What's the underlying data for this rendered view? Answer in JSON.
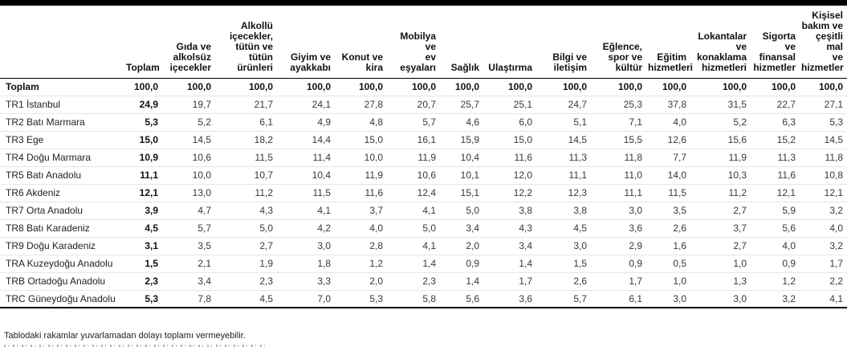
{
  "table": {
    "row_label_header": "",
    "columns": [
      "Toplam",
      "Gıda ve\nalkolsüz\niçecekler",
      "Alkollü\niçecekler,\ntütün ve\ntütün\nürünleri",
      "Giyim ve\nayakkabı",
      "Konut ve\nkira",
      "Mobilya ve\nev\neşyaları",
      "Sağlık",
      "Ulaştırma",
      "Bilgi ve\niletişim",
      "Eğlence,\nspor ve\nkültür",
      "Eğitim\nhizmetleri",
      "Lokantalar\nve\nkonaklama\nhizmetleri",
      "Sigorta ve\nfinansal\nhizmetler",
      "Kişisel\nbakım ve\nçeşitli mal\nve\nhizmetler"
    ],
    "rows": [
      {
        "label": "Toplam",
        "bold": true,
        "values": [
          "100,0",
          "100,0",
          "100,0",
          "100,0",
          "100,0",
          "100,0",
          "100,0",
          "100,0",
          "100,0",
          "100,0",
          "100,0",
          "100,0",
          "100,0",
          "100,0"
        ]
      },
      {
        "label": "TR1 İstanbul",
        "values": [
          "24,9",
          "19,7",
          "21,7",
          "24,1",
          "27,8",
          "20,7",
          "25,7",
          "25,1",
          "24,7",
          "25,3",
          "37,8",
          "31,5",
          "22,7",
          "27,1"
        ]
      },
      {
        "label": "TR2 Batı Marmara",
        "values": [
          "5,3",
          "5,2",
          "6,1",
          "4,9",
          "4,8",
          "5,7",
          "4,6",
          "6,0",
          "5,1",
          "7,1",
          "4,0",
          "5,2",
          "6,3",
          "5,3"
        ]
      },
      {
        "label": "TR3 Ege",
        "values": [
          "15,0",
          "14,5",
          "18,2",
          "14,4",
          "15,0",
          "16,1",
          "15,9",
          "15,0",
          "14,5",
          "15,5",
          "12,6",
          "15,6",
          "15,2",
          "14,5"
        ]
      },
      {
        "label": "TR4 Doğu Marmara",
        "values": [
          "10,9",
          "10,6",
          "11,5",
          "11,4",
          "10,0",
          "11,9",
          "10,4",
          "11,6",
          "11,3",
          "11,8",
          "7,7",
          "11,9",
          "11,3",
          "11,8"
        ]
      },
      {
        "label": "TR5 Batı Anadolu",
        "values": [
          "11,1",
          "10,0",
          "10,7",
          "10,4",
          "11,9",
          "10,6",
          "10,1",
          "12,0",
          "11,1",
          "11,0",
          "14,0",
          "10,3",
          "11,6",
          "10,8"
        ]
      },
      {
        "label": "TR6 Akdeniz",
        "values": [
          "12,1",
          "13,0",
          "11,2",
          "11,5",
          "11,6",
          "12,4",
          "15,1",
          "12,2",
          "12,3",
          "11,1",
          "11,5",
          "11,2",
          "12,1",
          "12,1"
        ]
      },
      {
        "label": "TR7 Orta Anadolu",
        "values": [
          "3,9",
          "4,7",
          "4,3",
          "4,1",
          "3,7",
          "4,1",
          "5,0",
          "3,8",
          "3,8",
          "3,0",
          "3,5",
          "2,7",
          "5,9",
          "3,2"
        ]
      },
      {
        "label": "TR8 Batı Karadeniz",
        "values": [
          "4,5",
          "5,7",
          "5,0",
          "4,2",
          "4,0",
          "5,0",
          "3,4",
          "4,3",
          "4,5",
          "3,6",
          "2,6",
          "3,7",
          "5,6",
          "4,0"
        ]
      },
      {
        "label": "TR9 Doğu Karadeniz",
        "values": [
          "3,1",
          "3,5",
          "2,7",
          "3,0",
          "2,8",
          "4,1",
          "2,0",
          "3,4",
          "3,0",
          "2,9",
          "1,6",
          "2,7",
          "4,0",
          "3,2"
        ]
      },
      {
        "label": "TRA Kuzeydoğu Anadolu",
        "values": [
          "1,5",
          "2,1",
          "1,9",
          "1,8",
          "1,2",
          "1,4",
          "0,9",
          "1,4",
          "1,5",
          "0,9",
          "0,5",
          "1,0",
          "0,9",
          "1,7"
        ]
      },
      {
        "label": "TRB Ortadoğu Anadolu",
        "values": [
          "2,3",
          "3,4",
          "2,3",
          "3,3",
          "2,0",
          "2,3",
          "1,4",
          "1,7",
          "2,6",
          "1,7",
          "1,0",
          "1,3",
          "1,2",
          "2,2"
        ]
      },
      {
        "label": "TRC Güneydoğu Anadolu",
        "values": [
          "5,3",
          "7,8",
          "4,5",
          "7,0",
          "5,3",
          "5,8",
          "5,6",
          "3,6",
          "5,7",
          "6,1",
          "3,0",
          "3,0",
          "3,2",
          "4,1"
        ]
      }
    ]
  },
  "footnote": "Tablodaki rakamlar yuvarlamadan dolayı toplamı vermeyebilir."
}
